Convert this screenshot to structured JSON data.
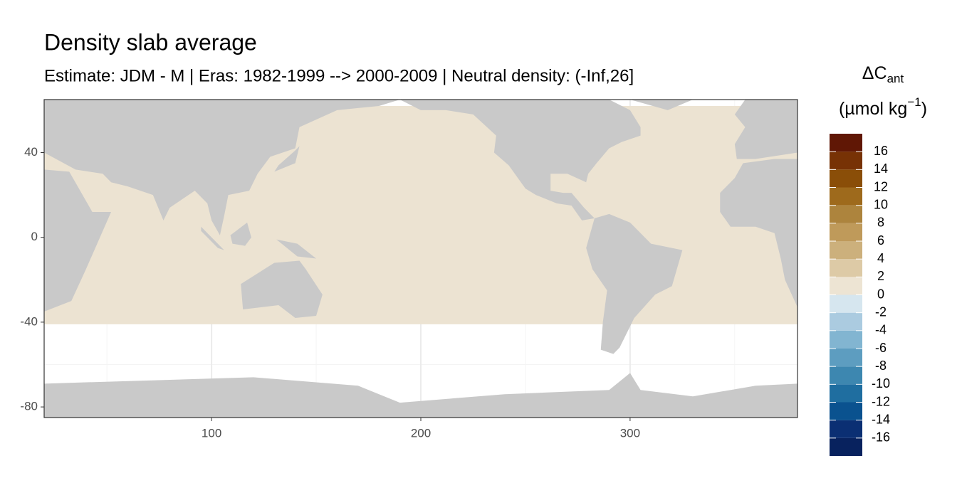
{
  "chart_data": {
    "type": "map",
    "title": "Density slab average",
    "subtitle": "Estimate: JDM - M | Eras: 1982-1999 --> 2000-2009 | Neutral density: (-Inf,26]",
    "xlim": [
      20,
      380
    ],
    "ylim": [
      -85,
      65
    ],
    "xticks": [
      100,
      200,
      300
    ],
    "yticks": [
      -80,
      -40,
      0,
      40
    ],
    "grid": true,
    "legend": {
      "title": "ΔC",
      "title_subscript": "ant",
      "unit": "(µmol kg",
      "unit_superscript": "−1",
      "unit_close": ")",
      "bins": [
        -18,
        -16,
        -14,
        -12,
        -10,
        -8,
        -6,
        -4,
        -2,
        0,
        2,
        4,
        6,
        8,
        10,
        12,
        14,
        16,
        18
      ],
      "colors": [
        "#08225e",
        "#0b2f73",
        "#0a528f",
        "#1f6ea0",
        "#3d87b0",
        "#5d9dc0",
        "#82b5d1",
        "#abcbe0",
        "#d6e6ef",
        "#ede4d3",
        "#ddcaa6",
        "#ccb07c",
        "#bf9a5a",
        "#ad843d",
        "#9e6a1c",
        "#8a4e08",
        "#773205",
        "#601705"
      ],
      "ticks": [
        -16,
        -14,
        -12,
        -10,
        -8,
        -6,
        -4,
        -2,
        0,
        2,
        4,
        6,
        8,
        10,
        12,
        14,
        16
      ]
    }
  }
}
